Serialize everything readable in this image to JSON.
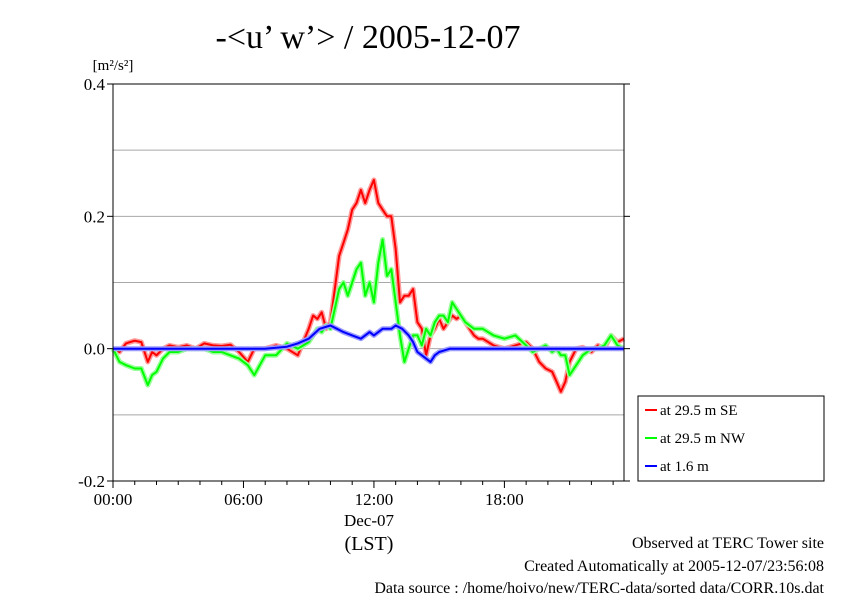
{
  "chart_data": {
    "type": "line",
    "title": "-<u’ w’> / 2005-12-07",
    "ylabel_unit": "[m²/s²]",
    "xlabel": "(LST)",
    "x_date_label": "Dec-07",
    "xlim_hours": [
      0,
      23.5
    ],
    "ylim": [
      -0.2,
      0.4
    ],
    "yticks": [
      -0.2,
      0.0,
      0.2,
      0.4
    ],
    "ytick_labels": [
      "-0.2",
      "0.0",
      "0.2",
      "0.4"
    ],
    "gridlines_y": [
      -0.1,
      0.0,
      0.1,
      0.2,
      0.3
    ],
    "xticks_hours": [
      0,
      6,
      12,
      18
    ],
    "xtick_labels": [
      "00:00",
      "06:00",
      "12:00",
      "18:00"
    ],
    "grid": true,
    "legend_position": "right",
    "series": [
      {
        "name": "at 29.5 m SE",
        "color": "#ff0000",
        "x": [
          0,
          0.3,
          0.6,
          1.0,
          1.3,
          1.6,
          1.8,
          2.0,
          2.3,
          2.6,
          3.0,
          3.4,
          3.8,
          4.2,
          4.6,
          5.0,
          5.4,
          5.8,
          6.2,
          6.5,
          7.0,
          7.5,
          8.0,
          8.5,
          9.0,
          9.2,
          9.4,
          9.6,
          9.8,
          10.0,
          10.2,
          10.4,
          10.6,
          10.8,
          11.0,
          11.2,
          11.4,
          11.6,
          11.8,
          12.0,
          12.2,
          12.4,
          12.6,
          12.8,
          13.0,
          13.2,
          13.4,
          13.6,
          13.8,
          14.0,
          14.2,
          14.4,
          14.6,
          14.8,
          15.0,
          15.2,
          15.4,
          15.6,
          15.8,
          16.0,
          16.2,
          16.4,
          16.6,
          16.8,
          17.0,
          17.5,
          18.0,
          18.5,
          19.0,
          19.3,
          19.6,
          19.9,
          20.2,
          20.4,
          20.6,
          20.8,
          21.0,
          21.3,
          21.6,
          22.0,
          22.3,
          22.6,
          22.9,
          23.2,
          23.5
        ],
        "values": [
          0.0,
          -0.005,
          0.008,
          0.012,
          0.01,
          -0.02,
          -0.005,
          -0.01,
          0.0,
          0.005,
          0.002,
          0.005,
          0.0,
          0.008,
          0.005,
          0.004,
          0.006,
          -0.005,
          -0.02,
          0.0,
          0.0,
          0.005,
          0.0,
          -0.01,
          0.03,
          0.05,
          0.045,
          0.055,
          0.03,
          0.04,
          0.09,
          0.14,
          0.16,
          0.18,
          0.21,
          0.22,
          0.24,
          0.22,
          0.24,
          0.255,
          0.22,
          0.21,
          0.2,
          0.2,
          0.15,
          0.07,
          0.08,
          0.08,
          0.09,
          0.04,
          0.03,
          -0.01,
          0.02,
          0.03,
          0.045,
          0.03,
          0.04,
          0.05,
          0.045,
          0.05,
          0.04,
          0.03,
          0.02,
          0.015,
          0.015,
          0.005,
          0.0,
          0.005,
          0.01,
          0.0,
          -0.02,
          -0.03,
          -0.035,
          -0.05,
          -0.065,
          -0.05,
          -0.02,
          0.0,
          0.002,
          -0.005,
          0.005,
          0.0,
          0.02,
          0.01,
          0.015
        ]
      },
      {
        "name": "at 29.5 m NW",
        "color": "#00ff00",
        "x": [
          0,
          0.3,
          0.6,
          1.0,
          1.3,
          1.6,
          1.8,
          2.0,
          2.3,
          2.6,
          3.0,
          3.4,
          3.8,
          4.2,
          4.6,
          5.0,
          5.4,
          5.8,
          6.2,
          6.5,
          7.0,
          7.5,
          8.0,
          8.5,
          9.0,
          9.2,
          9.4,
          9.6,
          9.8,
          10.0,
          10.2,
          10.4,
          10.6,
          10.8,
          11.0,
          11.2,
          11.4,
          11.6,
          11.8,
          12.0,
          12.2,
          12.4,
          12.6,
          12.8,
          13.0,
          13.2,
          13.4,
          13.6,
          13.8,
          14.0,
          14.2,
          14.4,
          14.6,
          14.8,
          15.0,
          15.2,
          15.4,
          15.6,
          15.8,
          16.0,
          16.2,
          16.4,
          16.6,
          16.8,
          17.0,
          17.5,
          18.0,
          18.5,
          19.0,
          19.3,
          19.6,
          19.9,
          20.2,
          20.4,
          20.6,
          20.8,
          21.0,
          21.3,
          21.6,
          22.0,
          22.3,
          22.6,
          22.9,
          23.2,
          23.5
        ],
        "values": [
          0.0,
          -0.02,
          -0.025,
          -0.03,
          -0.03,
          -0.055,
          -0.04,
          -0.035,
          -0.015,
          -0.005,
          -0.005,
          0.0,
          0.0,
          0.0,
          -0.005,
          -0.005,
          -0.01,
          -0.015,
          -0.025,
          -0.04,
          -0.01,
          -0.01,
          0.008,
          0.0,
          0.01,
          0.02,
          0.03,
          0.025,
          0.035,
          0.03,
          0.06,
          0.09,
          0.1,
          0.08,
          0.1,
          0.12,
          0.13,
          0.08,
          0.1,
          0.07,
          0.13,
          0.165,
          0.11,
          0.12,
          0.07,
          0.02,
          -0.02,
          0.0,
          0.02,
          0.02,
          0.005,
          0.03,
          0.02,
          0.04,
          0.05,
          0.05,
          0.04,
          0.07,
          0.06,
          0.05,
          0.04,
          0.035,
          0.03,
          0.03,
          0.03,
          0.02,
          0.015,
          0.02,
          0.005,
          -0.005,
          0.0,
          0.005,
          -0.005,
          0.0,
          -0.01,
          -0.01,
          -0.04,
          -0.025,
          -0.01,
          0.0,
          0.0,
          0.005,
          0.02,
          0.005,
          0.0
        ]
      },
      {
        "name": "at 1.6 m",
        "color": "#0000ff",
        "x": [
          0,
          1.0,
          2.0,
          3.0,
          4.0,
          5.0,
          6.0,
          7.0,
          8.0,
          8.5,
          9.0,
          9.5,
          10.0,
          10.3,
          10.6,
          11.0,
          11.4,
          11.8,
          12.0,
          12.4,
          12.8,
          13.0,
          13.3,
          13.6,
          13.8,
          14.0,
          14.2,
          14.4,
          14.6,
          14.8,
          15.0,
          15.5,
          16.0,
          16.5,
          17.0,
          17.5,
          18.0,
          19.0,
          20.0,
          21.0,
          22.0,
          23.0,
          23.5
        ],
        "values": [
          0.0,
          0.0,
          0.0,
          0.0,
          0.0,
          0.0,
          0.0,
          0.0,
          0.003,
          0.008,
          0.015,
          0.03,
          0.035,
          0.03,
          0.025,
          0.02,
          0.015,
          0.025,
          0.02,
          0.03,
          0.03,
          0.035,
          0.03,
          0.02,
          0.01,
          -0.005,
          -0.01,
          -0.015,
          -0.02,
          -0.01,
          -0.005,
          0.0,
          0.0,
          0.0,
          0.0,
          0.0,
          0.0,
          0.0,
          0.0,
          0.0,
          0.0,
          0.0,
          0.0
        ]
      }
    ]
  },
  "footer": {
    "line1": "Observed at TERC Tower site",
    "line2": "Created Automatically at 2005-12-07/23:56:08",
    "line3": "Data source : /home/hoivo/new/TERC-data/sorted  data/CORR.10s.dat"
  }
}
